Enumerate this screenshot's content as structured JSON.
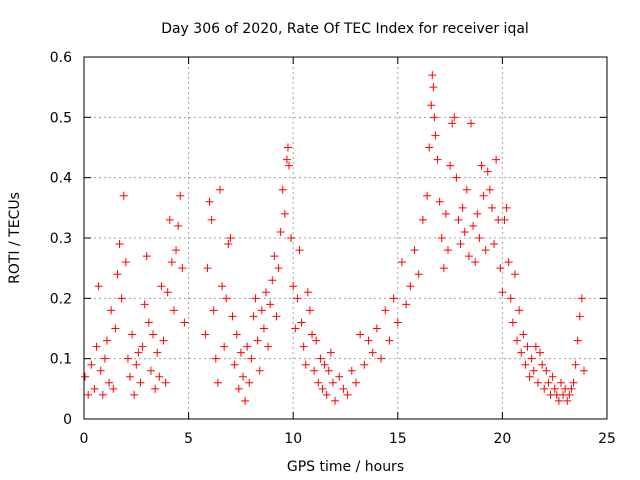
{
  "chart_data": {
    "type": "scatter",
    "title": "Day 306 of 2020, Rate Of TEC Index for receiver iqal",
    "xlabel": "GPS time / hours",
    "ylabel": "ROTI / TECUs",
    "xlim": [
      0,
      25
    ],
    "ylim": [
      0,
      0.6
    ],
    "xticks": [
      0,
      5,
      10,
      15,
      20,
      25
    ],
    "yticks": [
      0,
      0.1,
      0.2,
      0.3,
      0.4,
      0.5,
      0.6
    ],
    "xtick_labels": [
      "0",
      "5",
      "10",
      "15",
      "20",
      "25"
    ],
    "ytick_labels": [
      "0",
      "0.1",
      "0.2",
      "0.3",
      "0.4",
      "0.5",
      "0.6"
    ],
    "grid": true,
    "marker": "+",
    "marker_color": "#ff0000",
    "series": [
      {
        "points": [
          [
            0.05,
            0.07
          ],
          [
            0.2,
            0.04
          ],
          [
            0.35,
            0.09
          ],
          [
            0.5,
            0.05
          ],
          [
            0.6,
            0.12
          ],
          [
            0.7,
            0.22
          ],
          [
            0.8,
            0.08
          ],
          [
            0.9,
            0.04
          ],
          [
            1.0,
            0.1
          ],
          [
            1.1,
            0.13
          ],
          [
            1.2,
            0.06
          ],
          [
            1.3,
            0.18
          ],
          [
            1.4,
            0.05
          ],
          [
            1.5,
            0.15
          ],
          [
            1.6,
            0.24
          ],
          [
            1.7,
            0.29
          ],
          [
            1.8,
            0.2
          ],
          [
            1.9,
            0.37
          ],
          [
            2.0,
            0.26
          ],
          [
            2.1,
            0.1
          ],
          [
            2.2,
            0.07
          ],
          [
            2.3,
            0.14
          ],
          [
            2.4,
            0.04
          ],
          [
            2.5,
            0.09
          ],
          [
            2.6,
            0.11
          ],
          [
            2.7,
            0.06
          ],
          [
            2.8,
            0.12
          ],
          [
            2.9,
            0.19
          ],
          [
            3.0,
            0.27
          ],
          [
            3.1,
            0.16
          ],
          [
            3.2,
            0.08
          ],
          [
            3.3,
            0.14
          ],
          [
            3.4,
            0.05
          ],
          [
            3.5,
            0.11
          ],
          [
            3.6,
            0.07
          ],
          [
            3.7,
            0.22
          ],
          [
            3.8,
            0.13
          ],
          [
            3.9,
            0.06
          ],
          [
            4.0,
            0.21
          ],
          [
            4.1,
            0.33
          ],
          [
            4.2,
            0.26
          ],
          [
            4.3,
            0.18
          ],
          [
            4.4,
            0.28
          ],
          [
            4.5,
            0.32
          ],
          [
            4.6,
            0.37
          ],
          [
            4.7,
            0.25
          ],
          [
            4.8,
            0.16
          ],
          [
            5.8,
            0.14
          ],
          [
            5.9,
            0.25
          ],
          [
            6.0,
            0.36
          ],
          [
            6.1,
            0.33
          ],
          [
            6.2,
            0.18
          ],
          [
            6.3,
            0.1
          ],
          [
            6.4,
            0.06
          ],
          [
            6.5,
            0.38
          ],
          [
            6.6,
            0.22
          ],
          [
            6.7,
            0.12
          ],
          [
            6.8,
            0.2
          ],
          [
            6.9,
            0.29
          ],
          [
            7.0,
            0.3
          ],
          [
            7.1,
            0.17
          ],
          [
            7.2,
            0.09
          ],
          [
            7.3,
            0.14
          ],
          [
            7.4,
            0.05
          ],
          [
            7.5,
            0.11
          ],
          [
            7.6,
            0.07
          ],
          [
            7.7,
            0.03
          ],
          [
            7.8,
            0.12
          ],
          [
            7.9,
            0.06
          ],
          [
            8.0,
            0.1
          ],
          [
            8.1,
            0.17
          ],
          [
            8.2,
            0.2
          ],
          [
            8.3,
            0.13
          ],
          [
            8.4,
            0.08
          ],
          [
            8.5,
            0.18
          ],
          [
            8.6,
            0.15
          ],
          [
            8.7,
            0.21
          ],
          [
            8.8,
            0.12
          ],
          [
            8.9,
            0.19
          ],
          [
            9.0,
            0.23
          ],
          [
            9.1,
            0.27
          ],
          [
            9.2,
            0.17
          ],
          [
            9.3,
            0.25
          ],
          [
            9.4,
            0.31
          ],
          [
            9.5,
            0.38
          ],
          [
            9.6,
            0.34
          ],
          [
            9.7,
            0.43
          ],
          [
            9.75,
            0.45
          ],
          [
            9.8,
            0.42
          ],
          [
            9.9,
            0.3
          ],
          [
            10.0,
            0.22
          ],
          [
            10.1,
            0.15
          ],
          [
            10.2,
            0.2
          ],
          [
            10.3,
            0.28
          ],
          [
            10.4,
            0.16
          ],
          [
            10.5,
            0.12
          ],
          [
            10.6,
            0.09
          ],
          [
            10.7,
            0.21
          ],
          [
            10.8,
            0.18
          ],
          [
            10.9,
            0.14
          ],
          [
            11.0,
            0.08
          ],
          [
            11.1,
            0.13
          ],
          [
            11.2,
            0.06
          ],
          [
            11.3,
            0.1
          ],
          [
            11.4,
            0.05
          ],
          [
            11.5,
            0.09
          ],
          [
            11.6,
            0.04
          ],
          [
            11.7,
            0.08
          ],
          [
            11.8,
            0.11
          ],
          [
            11.9,
            0.06
          ],
          [
            12.0,
            0.03
          ],
          [
            12.2,
            0.07
          ],
          [
            12.4,
            0.05
          ],
          [
            12.6,
            0.04
          ],
          [
            12.8,
            0.08
          ],
          [
            13.0,
            0.06
          ],
          [
            13.2,
            0.14
          ],
          [
            13.4,
            0.09
          ],
          [
            13.6,
            0.13
          ],
          [
            13.8,
            0.11
          ],
          [
            14.0,
            0.15
          ],
          [
            14.2,
            0.1
          ],
          [
            14.4,
            0.18
          ],
          [
            14.6,
            0.13
          ],
          [
            14.8,
            0.2
          ],
          [
            15.0,
            0.16
          ],
          [
            15.2,
            0.26
          ],
          [
            15.4,
            0.19
          ],
          [
            15.6,
            0.22
          ],
          [
            15.8,
            0.28
          ],
          [
            16.0,
            0.24
          ],
          [
            16.2,
            0.33
          ],
          [
            16.4,
            0.37
          ],
          [
            16.5,
            0.45
          ],
          [
            16.6,
            0.52
          ],
          [
            16.65,
            0.57
          ],
          [
            16.7,
            0.55
          ],
          [
            16.75,
            0.5
          ],
          [
            16.8,
            0.47
          ],
          [
            16.9,
            0.43
          ],
          [
            17.0,
            0.36
          ],
          [
            17.1,
            0.3
          ],
          [
            17.2,
            0.25
          ],
          [
            17.3,
            0.34
          ],
          [
            17.4,
            0.28
          ],
          [
            17.5,
            0.42
          ],
          [
            17.6,
            0.49
          ],
          [
            17.7,
            0.5
          ],
          [
            17.8,
            0.4
          ],
          [
            17.9,
            0.33
          ],
          [
            18.0,
            0.29
          ],
          [
            18.1,
            0.35
          ],
          [
            18.2,
            0.31
          ],
          [
            18.3,
            0.38
          ],
          [
            18.4,
            0.27
          ],
          [
            18.5,
            0.49
          ],
          [
            18.6,
            0.32
          ],
          [
            18.7,
            0.26
          ],
          [
            18.8,
            0.34
          ],
          [
            18.9,
            0.3
          ],
          [
            19.0,
            0.42
          ],
          [
            19.1,
            0.37
          ],
          [
            19.2,
            0.28
          ],
          [
            19.3,
            0.41
          ],
          [
            19.4,
            0.38
          ],
          [
            19.5,
            0.35
          ],
          [
            19.6,
            0.29
          ],
          [
            19.7,
            0.43
          ],
          [
            19.8,
            0.33
          ],
          [
            19.9,
            0.25
          ],
          [
            20.0,
            0.21
          ],
          [
            20.1,
            0.33
          ],
          [
            20.2,
            0.35
          ],
          [
            20.3,
            0.26
          ],
          [
            20.4,
            0.2
          ],
          [
            20.5,
            0.16
          ],
          [
            20.6,
            0.24
          ],
          [
            20.7,
            0.13
          ],
          [
            20.8,
            0.18
          ],
          [
            20.9,
            0.11
          ],
          [
            21.0,
            0.14
          ],
          [
            21.1,
            0.09
          ],
          [
            21.2,
            0.12
          ],
          [
            21.3,
            0.07
          ],
          [
            21.4,
            0.1
          ],
          [
            21.5,
            0.08
          ],
          [
            21.6,
            0.12
          ],
          [
            21.7,
            0.06
          ],
          [
            21.8,
            0.11
          ],
          [
            21.9,
            0.09
          ],
          [
            22.0,
            0.05
          ],
          [
            22.1,
            0.08
          ],
          [
            22.2,
            0.06
          ],
          [
            22.3,
            0.04
          ],
          [
            22.4,
            0.07
          ],
          [
            22.5,
            0.05
          ],
          [
            22.6,
            0.04
          ],
          [
            22.7,
            0.03
          ],
          [
            22.8,
            0.06
          ],
          [
            22.9,
            0.04
          ],
          [
            23.0,
            0.05
          ],
          [
            23.1,
            0.03
          ],
          [
            23.2,
            0.04
          ],
          [
            23.3,
            0.05
          ],
          [
            23.4,
            0.06
          ],
          [
            23.5,
            0.09
          ],
          [
            23.6,
            0.13
          ],
          [
            23.7,
            0.17
          ],
          [
            23.8,
            0.2
          ],
          [
            23.9,
            0.08
          ]
        ]
      }
    ]
  }
}
